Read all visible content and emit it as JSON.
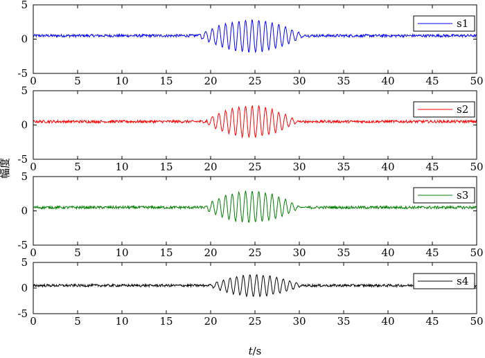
{
  "chart_data": [
    {
      "type": "line",
      "title": "",
      "xlabel": "",
      "ylabel": "",
      "xlim": [
        0,
        50
      ],
      "ylim": [
        -5,
        5
      ],
      "x_ticks": [
        "0",
        "5",
        "10",
        "15",
        "20",
        "25",
        "30",
        "35",
        "40",
        "45",
        "50"
      ],
      "y_ticks": [
        "5",
        "0",
        "-5"
      ],
      "legend": "top-right",
      "grid": false,
      "series": [
        {
          "name": "s1",
          "color": "#0000ff",
          "baseline": 0.5,
          "noise_amplitude": 0.2,
          "burst": {
            "start": 18.5,
            "end": 31,
            "center": 24.5,
            "peak_max": 2.8,
            "peak_min": -1.9,
            "period": 0.75
          }
        }
      ]
    },
    {
      "type": "line",
      "title": "",
      "xlabel": "",
      "ylabel": "",
      "xlim": [
        0,
        50
      ],
      "ylim": [
        -5,
        5
      ],
      "x_ticks": [
        "0",
        "5",
        "10",
        "15",
        "20",
        "25",
        "30",
        "35",
        "40",
        "45",
        "50"
      ],
      "y_ticks": [
        "5",
        "0",
        "-5"
      ],
      "legend": "top-right",
      "grid": false,
      "series": [
        {
          "name": "s2",
          "color": "#ff0000",
          "baseline": 0.5,
          "noise_amplitude": 0.2,
          "burst": {
            "start": 19.5,
            "end": 30.5,
            "center": 24.5,
            "peak_max": 2.8,
            "peak_min": -1.8,
            "period": 0.75
          }
        }
      ]
    },
    {
      "type": "line",
      "title": "",
      "xlabel": "",
      "ylabel": "",
      "xlim": [
        0,
        50
      ],
      "ylim": [
        -5,
        5
      ],
      "x_ticks": [
        "0",
        "5",
        "10",
        "15",
        "20",
        "25",
        "30",
        "35",
        "40",
        "45",
        "50"
      ],
      "y_ticks": [
        "5",
        "0",
        "-5"
      ],
      "legend": "top-right",
      "grid": false,
      "series": [
        {
          "name": "s3",
          "color": "#008000",
          "baseline": 0.5,
          "noise_amplitude": 0.2,
          "burst": {
            "start": 19.5,
            "end": 31,
            "center": 24.5,
            "peak_max": 2.9,
            "peak_min": -1.7,
            "period": 0.75
          }
        }
      ]
    },
    {
      "type": "line",
      "title": "",
      "xlabel": "t/s",
      "ylabel": "",
      "xlim": [
        0,
        50
      ],
      "ylim": [
        -5,
        5
      ],
      "x_ticks": [
        "0",
        "5",
        "10",
        "15",
        "20",
        "25",
        "30",
        "35",
        "40",
        "45",
        "50"
      ],
      "y_ticks": [
        "5",
        "0",
        "-5"
      ],
      "legend": "top-right",
      "grid": false,
      "series": [
        {
          "name": "s4",
          "color": "#000000",
          "baseline": 0.5,
          "noise_amplitude": 0.25,
          "burst": {
            "start": 19.5,
            "end": 30.5,
            "center": 25,
            "peak_max": 2.6,
            "peak_min": -1.6,
            "period": 0.75
          }
        }
      ]
    }
  ],
  "shared_ylabel": "幅度",
  "shared_xlabel_italic": "t",
  "shared_xlabel_rest": "/s"
}
